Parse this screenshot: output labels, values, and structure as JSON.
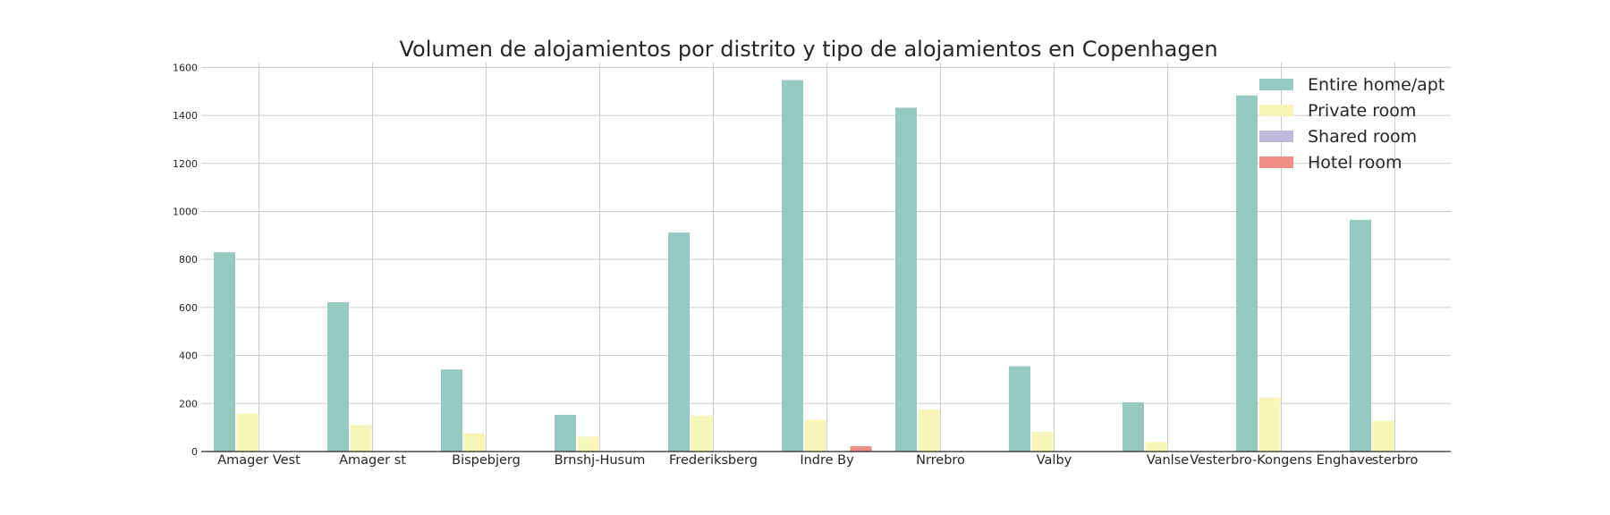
{
  "chart_data": {
    "type": "bar",
    "title": "Volumen de alojamientos por distrito y tipo de alojamientos en Copenhagen",
    "xlabel": "",
    "ylabel": "",
    "ylim": [
      0,
      1620
    ],
    "yticks": [
      0,
      200,
      400,
      600,
      800,
      1000,
      1200,
      1400,
      1600
    ],
    "grid": true,
    "legend_position": "top-right",
    "categories": [
      "Amager Vest",
      "Amager st",
      "Bispebjerg",
      "Brnshj-Husum",
      "Frederiksberg",
      "Indre By",
      "Nrrebro",
      "Valby",
      "Vanlse",
      "Vesterbro-Kongens Enghave",
      "sterbro"
    ],
    "series": [
      {
        "name": "Entire home/apt",
        "color": "#96c9bf",
        "values": [
          830,
          622,
          342,
          153,
          912,
          1547,
          1432,
          355,
          205,
          1483,
          965
        ]
      },
      {
        "name": "Private room",
        "color": "#f7f5b8",
        "values": [
          158,
          110,
          75,
          62,
          150,
          133,
          175,
          82,
          40,
          225,
          128
        ]
      },
      {
        "name": "Shared room",
        "color": "#bebad9",
        "values": [
          0,
          0,
          0,
          0,
          0,
          2,
          2,
          0,
          0,
          2,
          0
        ]
      },
      {
        "name": "Hotel room",
        "color": "#ef8e82",
        "values": [
          0,
          0,
          0,
          0,
          0,
          22,
          0,
          0,
          0,
          0,
          0
        ]
      }
    ]
  }
}
